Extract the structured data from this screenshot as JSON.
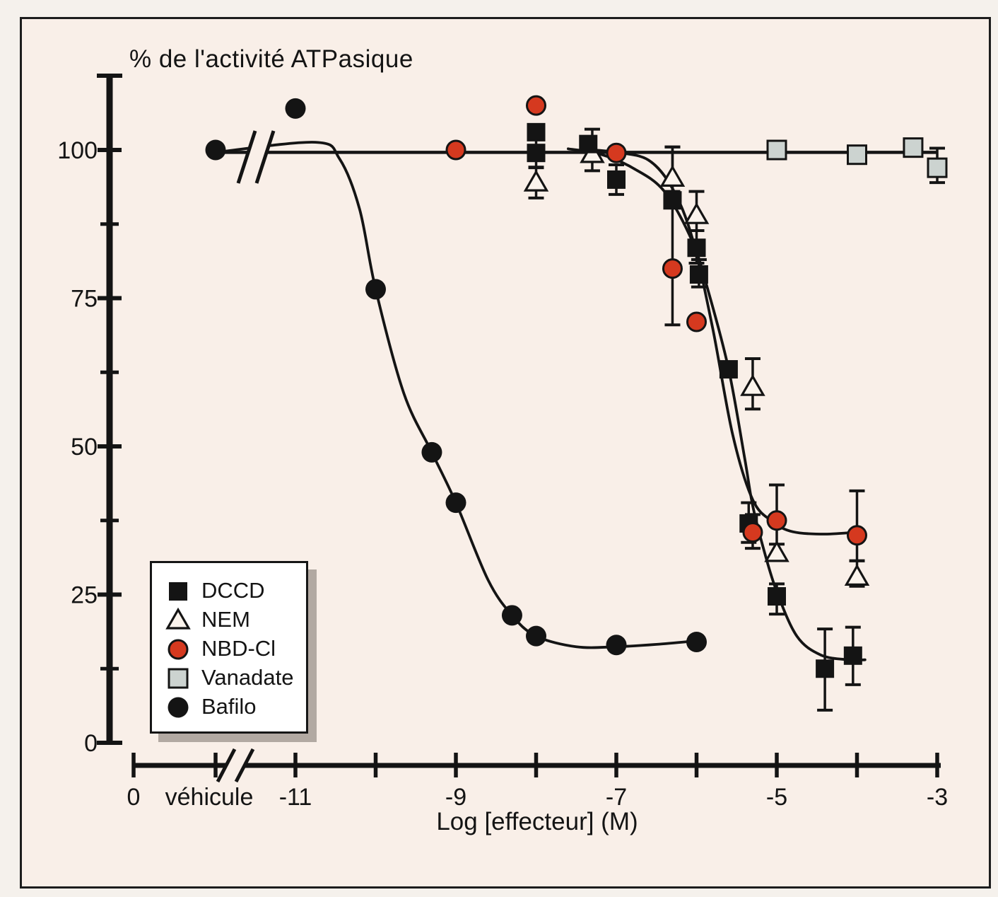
{
  "figure": {
    "background": "#f9efe8",
    "ink": "#141414",
    "accent_red": "#d5391f",
    "vanadate_gray": "#ccd3d0"
  },
  "chart_data": {
    "type": "scatter",
    "title": "% de l'activité ATPasique",
    "xlabel": "Log [effecteur] (M)",
    "ylabel": "% de l'activité ATPasique",
    "x_axis": {
      "scale": "log10 effector concentration (M)",
      "range": [
        -11,
        -3
      ],
      "axis_break_between": [
        "véhicule",
        "-11"
      ],
      "ticks": [
        {
          "x": "zero",
          "label": "0"
        },
        {
          "x": "vehicule",
          "label": "véhicule"
        },
        {
          "x": -11,
          "label": "-11"
        },
        {
          "x": -10,
          "label": ""
        },
        {
          "x": -9,
          "label": "-9"
        },
        {
          "x": -8,
          "label": ""
        },
        {
          "x": -7,
          "label": "-7"
        },
        {
          "x": -6,
          "label": ""
        },
        {
          "x": -5,
          "label": "-5"
        },
        {
          "x": -4,
          "label": ""
        },
        {
          "x": -3,
          "label": "-3"
        }
      ]
    },
    "y_axis": {
      "range": [
        0,
        112
      ],
      "major_ticks": [
        {
          "v": 100,
          "label": "100"
        },
        {
          "v": 75,
          "label": "75"
        },
        {
          "v": 50,
          "label": "50"
        },
        {
          "v": 25,
          "label": "25"
        },
        {
          "v": 0,
          "label": "0"
        }
      ],
      "minor_ticks": [
        87.5,
        62.5,
        37.5,
        12.5
      ],
      "grid": false
    },
    "legend": {
      "position": "lower-left",
      "items": [
        "DCCD",
        "NEM",
        "NBD-Cl",
        "Vanadate",
        "Bafilo"
      ]
    },
    "series": [
      {
        "name": "DCCD",
        "marker": "filled-square",
        "fill": "#141414",
        "stroke": "#141414",
        "points": [
          {
            "x": -8,
            "y": 103
          },
          {
            "x": -8,
            "y": 99.5,
            "err": [
              97,
              102
            ]
          },
          {
            "x": -7.35,
            "y": 101
          },
          {
            "x": -7,
            "y": 95,
            "err": [
              92.5,
              97.5
            ]
          },
          {
            "x": -6.3,
            "y": 91.5
          },
          {
            "x": -6,
            "y": 83.5,
            "err": [
              80.9,
              86.4
            ]
          },
          {
            "x": -5.97,
            "y": 79,
            "err": [
              76.9,
              81.5
            ]
          },
          {
            "x": -5.6,
            "y": 63
          },
          {
            "x": -5.35,
            "y": 37,
            "err": [
              33.8,
              40.5
            ]
          },
          {
            "x": -5,
            "y": 24.7,
            "err": [
              21.7,
              26.8
            ]
          },
          {
            "x": -4.4,
            "y": 12.5,
            "err": [
              5.5,
              19.2
            ]
          },
          {
            "x": -4.05,
            "y": 14.7,
            "err": [
              9.8,
              19.5
            ]
          }
        ]
      },
      {
        "name": "NEM",
        "marker": "open-triangle",
        "fill": "#fbf4ed",
        "stroke": "#141414",
        "points": [
          {
            "x": -8,
            "y": 94.5,
            "err": [
              91.9,
              97.1
            ]
          },
          {
            "x": -7.3,
            "y": 99.3,
            "err": [
              96.5,
              103.5
            ]
          },
          {
            "x": -6.3,
            "y": 95.3,
            "err": [
              93,
              100.5
            ]
          },
          {
            "x": -6,
            "y": 89,
            "err": [
              86.4,
              93
            ]
          },
          {
            "x": -5.3,
            "y": 60,
            "err": [
              56.3,
              64.8
            ]
          },
          {
            "x": -5,
            "y": 32
          },
          {
            "x": -4,
            "y": 28,
            "err": [
              26.4,
              30.7
            ]
          }
        ]
      },
      {
        "name": "NBD-Cl",
        "marker": "red-circle",
        "fill": "#d5391f",
        "stroke": "#141414",
        "points": [
          {
            "x": -9,
            "y": 100
          },
          {
            "x": -8,
            "y": 107.5
          },
          {
            "x": -7,
            "y": 99.5
          },
          {
            "x": -6.3,
            "y": 80,
            "err": [
              70.5,
              100.5
            ]
          },
          {
            "x": -6,
            "y": 71
          },
          {
            "x": -5.3,
            "y": 35.5,
            "err": [
              32.8,
              38.5
            ]
          },
          {
            "x": -5,
            "y": 37.5,
            "err": [
              33.5,
              43.5
            ]
          },
          {
            "x": -4,
            "y": 35,
            "err": [
              30.7,
              42.5
            ]
          }
        ]
      },
      {
        "name": "Vanadate",
        "marker": "gray-square",
        "fill": "#ccd3d0",
        "stroke": "#141414",
        "points": [
          {
            "x": -5,
            "y": 100
          },
          {
            "x": -4,
            "y": 99.2
          },
          {
            "x": -3.3,
            "y": 100.4
          },
          {
            "x": -3,
            "y": 97,
            "err": [
              94.5,
              100.3
            ]
          }
        ]
      },
      {
        "name": "Bafilo",
        "marker": "filled-circle",
        "fill": "#141414",
        "stroke": "#141414",
        "points": [
          {
            "x": "vehicule",
            "y": 100
          },
          {
            "x": -11,
            "y": 107
          },
          {
            "x": -10,
            "y": 76.5
          },
          {
            "x": -9.3,
            "y": 49
          },
          {
            "x": -9,
            "y": 40.5
          },
          {
            "x": -8.3,
            "y": 21.5
          },
          {
            "x": -8,
            "y": 18
          },
          {
            "x": -7,
            "y": 16.5
          },
          {
            "x": -6,
            "y": 17
          }
        ]
      }
    ],
    "curves": [
      {
        "series": "control-line",
        "shape": "straight",
        "anchors": [
          [
            "vehicule",
            99.6
          ],
          [
            -3.02,
            99.6
          ]
        ]
      },
      {
        "series": "Bafilo",
        "shape": "smooth",
        "anchors": [
          [
            "vehicule",
            99.6
          ],
          [
            -10.75,
            101.3
          ],
          [
            -10.45,
            98.5
          ],
          [
            -10.2,
            90
          ],
          [
            -10,
            76.5
          ],
          [
            -9.65,
            59
          ],
          [
            -9.3,
            49
          ],
          [
            -9,
            40.5
          ],
          [
            -8.6,
            27.5
          ],
          [
            -8.3,
            21.5
          ],
          [
            -8,
            18
          ],
          [
            -7.5,
            16.2
          ],
          [
            -7,
            16.2
          ],
          [
            -6.5,
            16.6
          ],
          [
            -6,
            17.2
          ]
        ]
      },
      {
        "series": "NBD-Cl",
        "shape": "smooth",
        "anchors": [
          [
            -7.3,
            100
          ],
          [
            -7,
            99.6
          ],
          [
            -6.6,
            98.3
          ],
          [
            -6.3,
            93.5
          ],
          [
            -6.05,
            85
          ],
          [
            -5.8,
            70
          ],
          [
            -5.55,
            52
          ],
          [
            -5.3,
            41
          ],
          [
            -5.05,
            37.3
          ],
          [
            -4.8,
            35.6
          ],
          [
            -4.4,
            35.2
          ],
          [
            -3.95,
            35.6
          ]
        ]
      },
      {
        "series": "DCCD",
        "shape": "smooth",
        "anchors": [
          [
            -7.6,
            100.2
          ],
          [
            -7.2,
            99.3
          ],
          [
            -6.8,
            97
          ],
          [
            -6.4,
            93
          ],
          [
            -6.05,
            84.5
          ],
          [
            -5.85,
            76
          ],
          [
            -5.6,
            63
          ],
          [
            -5.4,
            48
          ],
          [
            -5.3,
            40
          ],
          [
            -5.15,
            32
          ],
          [
            -5,
            25.5
          ],
          [
            -4.75,
            18
          ],
          [
            -4.45,
            14.8
          ],
          [
            -4.1,
            14
          ],
          [
            -3.9,
            14
          ]
        ]
      }
    ]
  }
}
